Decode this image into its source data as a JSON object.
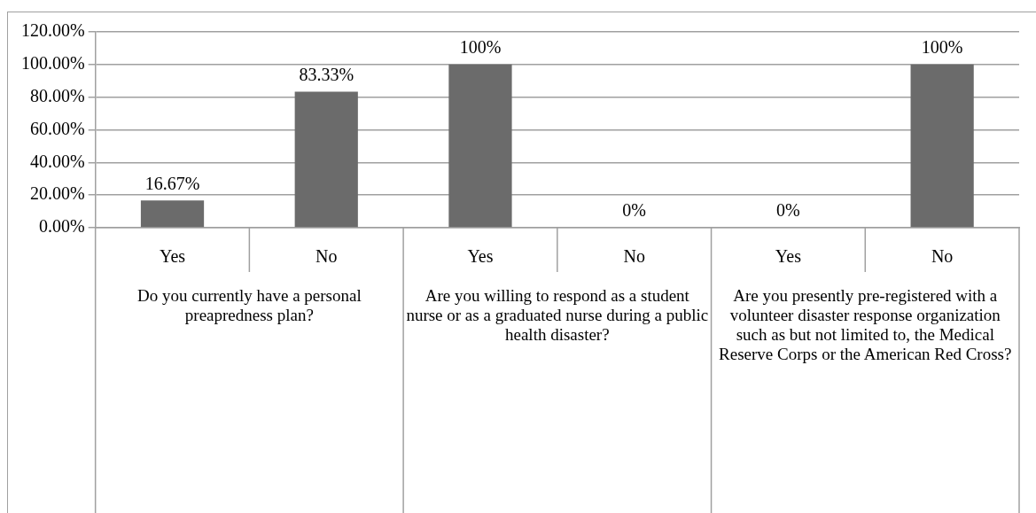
{
  "chart_data": {
    "type": "bar",
    "categories": [
      "Yes",
      "No",
      "Yes",
      "No",
      "Yes",
      "No"
    ],
    "values": [
      16.67,
      83.33,
      100,
      0,
      0,
      100
    ],
    "value_labels": [
      "16.67%",
      "83.33%",
      "100%",
      "0%",
      "0%",
      "100%"
    ],
    "color": "#6b6b6b",
    "ylim": [
      0,
      120
    ],
    "yticks": [
      {
        "value": 0,
        "label": "0.00%"
      },
      {
        "value": 20,
        "label": "20.00%"
      },
      {
        "value": 40,
        "label": "40.00%"
      },
      {
        "value": 60,
        "label": "60.00%"
      },
      {
        "value": 80,
        "label": "80.00%"
      },
      {
        "value": 100,
        "label": "100.00%"
      },
      {
        "value": 120,
        "label": "120.00%"
      }
    ],
    "grid": "y",
    "legend": false,
    "annotations": [
      "Do you currently have a personal preapredness plan?",
      "Are you willing to respond as a student nurse or as a graduated nurse during a public health disaster?",
      "Are you presently pre-registered with a volunteer disaster response organization such as but not limited to, the Medical Reserve Corps or the American Red Cross?"
    ]
  }
}
